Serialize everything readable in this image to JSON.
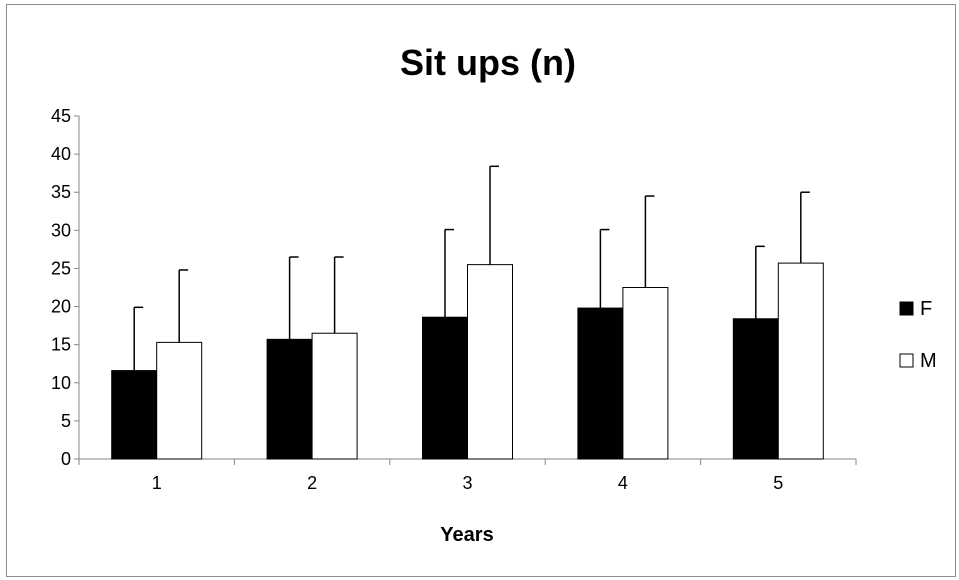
{
  "chart_data": {
    "type": "bar",
    "title": "Sit ups (n)",
    "xlabel": "Years",
    "ylabel": "",
    "categories": [
      "1",
      "2",
      "3",
      "4",
      "5"
    ],
    "ylim": [
      0,
      45
    ],
    "yticks": [
      "0",
      "5",
      "10",
      "15",
      "20",
      "25",
      "30",
      "35",
      "40",
      "45"
    ],
    "grid": false,
    "legend_position": "right",
    "series": [
      {
        "name": "F",
        "values": [
          11.6,
          15.7,
          18.6,
          19.8,
          18.4
        ],
        "error_plus": [
          8.3,
          10.8,
          11.5,
          10.3,
          9.5
        ],
        "color": "#000000"
      },
      {
        "name": "M",
        "values": [
          15.3,
          16.5,
          25.5,
          22.5,
          25.7
        ],
        "error_plus": [
          9.5,
          10.0,
          12.9,
          12.0,
          9.3
        ],
        "color": "#ffffff"
      }
    ]
  }
}
